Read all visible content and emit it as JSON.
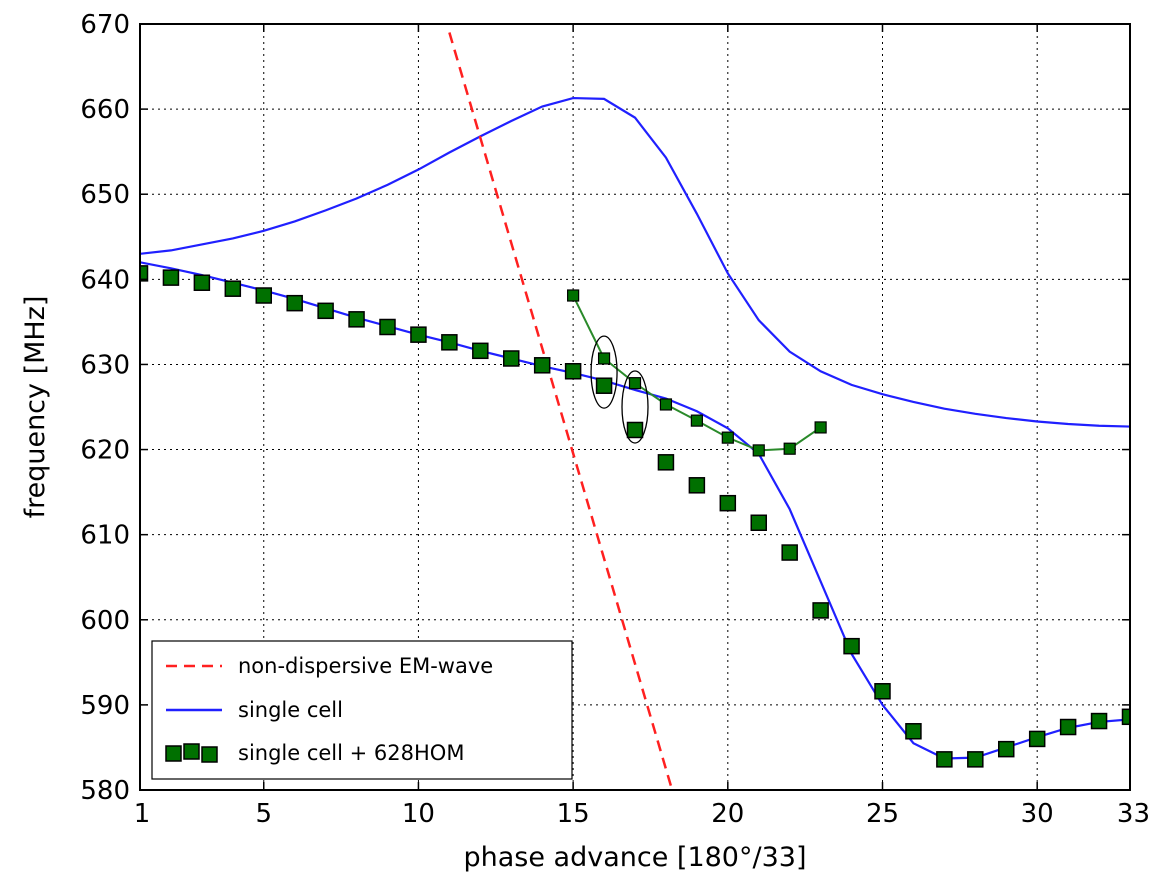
{
  "chart_data": {
    "type": "line",
    "title": "",
    "xlabel": "phase advance [180°/33]",
    "ylabel": "frequency [MHz]",
    "xlim": [
      1,
      33
    ],
    "ylim": [
      580,
      670
    ],
    "xticks": [
      1,
      5,
      10,
      15,
      20,
      25,
      30,
      33
    ],
    "yticks": [
      580,
      590,
      600,
      610,
      620,
      630,
      640,
      650,
      660,
      670
    ],
    "grid": true,
    "legend_position": "lower-left",
    "series": [
      {
        "name": "non-dispersive EM-wave",
        "style": "dashed-line",
        "color": "#ff2020",
        "x": [
          11.0,
          18.2
        ],
        "y": [
          669.0,
          580.0
        ]
      },
      {
        "name": "single cell",
        "style": "line",
        "color": "#2020ff",
        "branches": [
          {
            "x": [
              1,
              2,
              3,
              4,
              5,
              6,
              7,
              8,
              9,
              10,
              11,
              12,
              13,
              14,
              15,
              16,
              17,
              18,
              19,
              20,
              21,
              22,
              23,
              24,
              25,
              26,
              27,
              28,
              29,
              30,
              31,
              32,
              33
            ],
            "y": [
              643.0,
              643.4,
              644.1,
              644.8,
              645.7,
              646.8,
              648.1,
              649.5,
              651.1,
              652.9,
              654.9,
              656.8,
              658.6,
              660.3,
              661.3,
              661.2,
              659.0,
              654.3,
              647.7,
              640.7,
              635.2,
              631.5,
              629.2,
              627.6,
              626.5,
              625.6,
              624.8,
              624.2,
              623.7,
              623.3,
              623.0,
              622.8,
              622.7
            ]
          },
          {
            "x": [
              1,
              2,
              3,
              4,
              5,
              6,
              7,
              8,
              9,
              10,
              11,
              12,
              13,
              14,
              15,
              16,
              17,
              18,
              19,
              20,
              21,
              22,
              23,
              24,
              25,
              26,
              27,
              28,
              29,
              30,
              31,
              32,
              33
            ],
            "y": [
              642.0,
              641.3,
              640.5,
              639.6,
              638.7,
              637.7,
              636.6,
              635.5,
              634.5,
              633.5,
              632.6,
              631.6,
              630.7,
              629.8,
              629.0,
              628.1,
              627.0,
              626.0,
              624.5,
              622.5,
              619.5,
              613.0,
              604.5,
              596.0,
              590.0,
              585.5,
              583.7,
              583.8,
              585.0,
              586.2,
              587.3,
              588.0,
              588.3
            ]
          }
        ]
      },
      {
        "name": "single cell + 628HOM",
        "style": "square-markers",
        "color": "#007000",
        "x": [
          1,
          2,
          3,
          4,
          5,
          6,
          7,
          8,
          9,
          10,
          11,
          12,
          13,
          14,
          15,
          16,
          17,
          18,
          19,
          20,
          21,
          22,
          23,
          24,
          25,
          26,
          27,
          28,
          29,
          30,
          31,
          32,
          33
        ],
        "y": [
          640.7,
          640.2,
          639.6,
          638.9,
          638.1,
          637.2,
          636.3,
          635.3,
          634.4,
          633.5,
          632.6,
          631.6,
          630.7,
          629.9,
          629.2,
          627.5,
          622.3,
          618.5,
          615.8,
          613.7,
          611.4,
          607.9,
          601.1,
          596.9,
          591.6,
          586.9,
          583.6,
          583.6,
          584.8,
          586.0,
          587.4,
          588.1,
          588.6
        ]
      },
      {
        "name": "",
        "style": "line-with-square-markers",
        "color": "#007000",
        "x": [
          15,
          16,
          17,
          18,
          19,
          20,
          21,
          22,
          23
        ],
        "y": [
          638.1,
          630.7,
          627.8,
          625.3,
          623.4,
          621.4,
          619.9,
          620.1,
          622.6
        ]
      }
    ],
    "annotations": [
      {
        "type": "ellipse",
        "x": 16,
        "y": 629.1
      },
      {
        "type": "ellipse",
        "x": 17,
        "y": 625.0
      }
    ]
  },
  "colors": {
    "em_wave": "#ff2020",
    "single_cell": "#2020ff",
    "hom": "#007000"
  }
}
